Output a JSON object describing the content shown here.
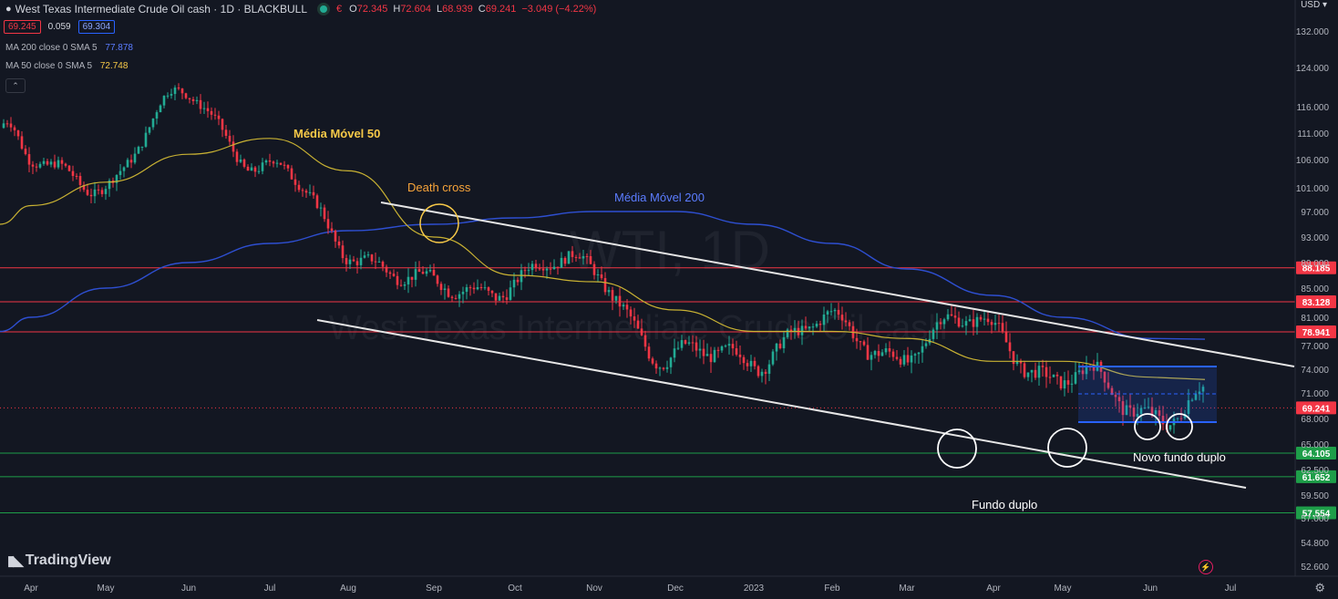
{
  "header": {
    "title": "West Texas Intermediate Crude Oil cash · 1D · BLACKBULL",
    "o_label": "O",
    "o": "72.345",
    "h_label": "H",
    "h": "72.604",
    "l_label": "L",
    "l": "68.939",
    "c_label": "C",
    "c": "69.241",
    "change": "−3.049 (−4.22%)",
    "market_icon": "market-status-icon"
  },
  "quote": {
    "bid": "69.245",
    "spread": "0.059",
    "ask": "69.304"
  },
  "indicators": [
    {
      "label": "MA 200 close 0 SMA 5",
      "value": "77.878",
      "color": "#2962ff"
    },
    {
      "label": "MA 50 close 0 SMA 5",
      "value": "72.748",
      "color": "#f7c948"
    }
  ],
  "collapse_symbol": "⌃",
  "currency": "USD ▾",
  "brand": "TradingView",
  "watermark": {
    "line1": "WTI, 1D",
    "line2": "West Texas Intermediate Crude Oil cash"
  },
  "annotations": {
    "ma50": "Média Móvel 50",
    "ma200": "Média Móvel 200",
    "death_cross": "Death cross",
    "double_bottom": "Fundo duplo",
    "new_double_bottom": "Novo fundo duplo"
  },
  "colors": {
    "up": "#22ab94",
    "down": "#f23645",
    "ma50": "#c9b233",
    "ma200": "#2e4fd1",
    "bg": "#131722"
  },
  "chart_data": {
    "type": "candlestick",
    "title": "West Texas Intermediate Crude Oil cash · 1D · BLACKBULL",
    "x_ticks": [
      "Apr",
      "May",
      "Jun",
      "Jul",
      "Aug",
      "Sep",
      "Oct",
      "Nov",
      "Dec",
      "2023",
      "Feb",
      "Mar",
      "Apr",
      "May",
      "Jun",
      "Jul"
    ],
    "y_ticks": [
      "132.000",
      "124.000",
      "116.000",
      "111.000",
      "106.000",
      "101.000",
      "97.000",
      "93.000",
      "89.000",
      "85.000",
      "81.000",
      "77.000",
      "74.000",
      "71.000",
      "68.000",
      "65.000",
      "62.500",
      "59.500",
      "57.000",
      "54.800",
      "52.600"
    ],
    "last_price": "69.241",
    "close_approx": [
      {
        "date": "Apr",
        "value": 104
      },
      {
        "date": "May",
        "value": 103
      },
      {
        "date": "Jun",
        "value": 118
      },
      {
        "date": "Jul",
        "value": 104
      },
      {
        "date": "Aug",
        "value": 92
      },
      {
        "date": "Sep",
        "value": 84
      },
      {
        "date": "Oct",
        "value": 87
      },
      {
        "date": "Nov",
        "value": 88
      },
      {
        "date": "Dec",
        "value": 74
      },
      {
        "date": "2023",
        "value": 77
      },
      {
        "date": "Feb",
        "value": 79
      },
      {
        "date": "Mar",
        "value": 77
      },
      {
        "date": "Apr",
        "value": 80
      },
      {
        "date": "May",
        "value": 72
      },
      {
        "date": "Jun",
        "value": 70
      }
    ],
    "ma50_approx": [
      {
        "date": "Apr",
        "value": 98
      },
      {
        "date": "May",
        "value": 102
      },
      {
        "date": "Jun",
        "value": 107
      },
      {
        "date": "Jul",
        "value": 110
      },
      {
        "date": "Aug",
        "value": 104
      },
      {
        "date": "Sep",
        "value": 93
      },
      {
        "date": "Oct",
        "value": 87
      },
      {
        "date": "Nov",
        "value": 86
      },
      {
        "date": "Dec",
        "value": 82
      },
      {
        "date": "2023",
        "value": 79
      },
      {
        "date": "Feb",
        "value": 79
      },
      {
        "date": "Mar",
        "value": 78
      },
      {
        "date": "Apr",
        "value": 75
      },
      {
        "date": "May",
        "value": 75
      },
      {
        "date": "Jun",
        "value": 73
      }
    ],
    "ma200_approx": [
      {
        "date": "Apr",
        "value": 81
      },
      {
        "date": "May",
        "value": 85
      },
      {
        "date": "Jun",
        "value": 89
      },
      {
        "date": "Jul",
        "value": 92
      },
      {
        "date": "Aug",
        "value": 94
      },
      {
        "date": "Sep",
        "value": 95
      },
      {
        "date": "Oct",
        "value": 96
      },
      {
        "date": "Nov",
        "value": 97
      },
      {
        "date": "Dec",
        "value": 97
      },
      {
        "date": "2023",
        "value": 95
      },
      {
        "date": "Feb",
        "value": 92
      },
      {
        "date": "Mar",
        "value": 88
      },
      {
        "date": "Apr",
        "value": 84
      },
      {
        "date": "May",
        "value": 81
      },
      {
        "date": "Jun",
        "value": 78
      }
    ],
    "resistance_levels": [
      "88.185",
      "83.128",
      "78.941"
    ],
    "support_levels": [
      "64.105",
      "61.652",
      "57.554"
    ]
  }
}
